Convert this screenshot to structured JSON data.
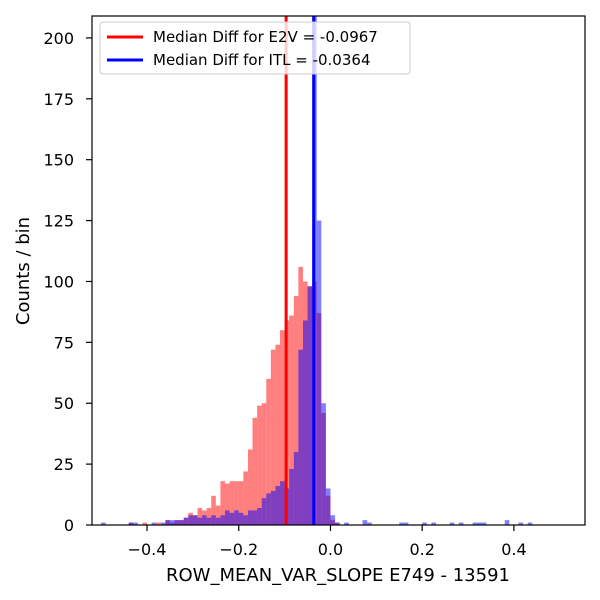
{
  "chart_data": {
    "type": "histogram",
    "title": "",
    "xlabel": "ROW_MEAN_VAR_SLOPE E749 - 13591",
    "ylabel": "Counts / bin",
    "xlim": [
      -0.52,
      0.555
    ],
    "ylim": [
      0,
      209
    ],
    "xticks": [
      -0.4,
      -0.2,
      0.0,
      0.2,
      0.4
    ],
    "xtick_labels": [
      "−0.4",
      "−0.2",
      "0.0",
      "0.2",
      "0.4"
    ],
    "yticks": [
      0,
      25,
      50,
      75,
      100,
      125,
      150,
      175,
      200
    ],
    "ytick_labels": [
      "0",
      "25",
      "50",
      "75",
      "100",
      "125",
      "150",
      "175",
      "200"
    ],
    "grid": false,
    "legend_position": "top-left",
    "bin_edges": [
      -0.5,
      0.55
    ],
    "bin_count": 105,
    "series": [
      {
        "name": "E2V",
        "color": "#ff0000",
        "alpha": 0.5,
        "bins": [
          {
            "x": -0.435,
            "y": 1
          },
          {
            "x": -0.405,
            "y": 1
          },
          {
            "x": -0.375,
            "y": 1
          },
          {
            "x": -0.355,
            "y": 2
          },
          {
            "x": -0.345,
            "y": 1
          },
          {
            "x": -0.335,
            "y": 2
          },
          {
            "x": -0.325,
            "y": 2
          },
          {
            "x": -0.315,
            "y": 3
          },
          {
            "x": -0.305,
            "y": 5
          },
          {
            "x": -0.295,
            "y": 4
          },
          {
            "x": -0.285,
            "y": 7
          },
          {
            "x": -0.275,
            "y": 6
          },
          {
            "x": -0.265,
            "y": 7
          },
          {
            "x": -0.255,
            "y": 12
          },
          {
            "x": -0.245,
            "y": 8
          },
          {
            "x": -0.235,
            "y": 18
          },
          {
            "x": -0.225,
            "y": 17
          },
          {
            "x": -0.215,
            "y": 18
          },
          {
            "x": -0.205,
            "y": 18
          },
          {
            "x": -0.195,
            "y": 18
          },
          {
            "x": -0.185,
            "y": 22
          },
          {
            "x": -0.175,
            "y": 31
          },
          {
            "x": -0.165,
            "y": 44
          },
          {
            "x": -0.155,
            "y": 49
          },
          {
            "x": -0.145,
            "y": 50
          },
          {
            "x": -0.135,
            "y": 60
          },
          {
            "x": -0.125,
            "y": 72
          },
          {
            "x": -0.115,
            "y": 74
          },
          {
            "x": -0.105,
            "y": 80
          },
          {
            "x": -0.095,
            "y": 84
          },
          {
            "x": -0.085,
            "y": 86
          },
          {
            "x": -0.075,
            "y": 94
          },
          {
            "x": -0.065,
            "y": 106
          },
          {
            "x": -0.055,
            "y": 100
          },
          {
            "x": -0.045,
            "y": 98
          },
          {
            "x": -0.035,
            "y": 100
          },
          {
            "x": -0.025,
            "y": 87
          },
          {
            "x": -0.015,
            "y": 46
          },
          {
            "x": -0.005,
            "y": 12
          },
          {
            "x": 0.005,
            "y": 2
          },
          {
            "x": 0.015,
            "y": 1
          }
        ]
      },
      {
        "name": "ITL",
        "color": "#0000ff",
        "alpha": 0.5,
        "bins": [
          {
            "x": -0.495,
            "y": 1
          },
          {
            "x": -0.435,
            "y": 1
          },
          {
            "x": -0.425,
            "y": 1
          },
          {
            "x": -0.385,
            "y": 1
          },
          {
            "x": -0.365,
            "y": 1
          },
          {
            "x": -0.355,
            "y": 2
          },
          {
            "x": -0.345,
            "y": 2
          },
          {
            "x": -0.335,
            "y": 2
          },
          {
            "x": -0.325,
            "y": 2
          },
          {
            "x": -0.315,
            "y": 3
          },
          {
            "x": -0.305,
            "y": 4
          },
          {
            "x": -0.295,
            "y": 4
          },
          {
            "x": -0.285,
            "y": 3
          },
          {
            "x": -0.275,
            "y": 4
          },
          {
            "x": -0.265,
            "y": 3
          },
          {
            "x": -0.255,
            "y": 4
          },
          {
            "x": -0.245,
            "y": 3
          },
          {
            "x": -0.235,
            "y": 4
          },
          {
            "x": -0.225,
            "y": 6
          },
          {
            "x": -0.215,
            "y": 5
          },
          {
            "x": -0.205,
            "y": 6
          },
          {
            "x": -0.195,
            "y": 5
          },
          {
            "x": -0.185,
            "y": 4
          },
          {
            "x": -0.175,
            "y": 6
          },
          {
            "x": -0.165,
            "y": 6
          },
          {
            "x": -0.155,
            "y": 7
          },
          {
            "x": -0.145,
            "y": 11
          },
          {
            "x": -0.135,
            "y": 13
          },
          {
            "x": -0.125,
            "y": 14
          },
          {
            "x": -0.115,
            "y": 16
          },
          {
            "x": -0.105,
            "y": 18
          },
          {
            "x": -0.095,
            "y": 15
          },
          {
            "x": -0.085,
            "y": 23
          },
          {
            "x": -0.075,
            "y": 30
          },
          {
            "x": -0.065,
            "y": 72
          },
          {
            "x": -0.055,
            "y": 84
          },
          {
            "x": -0.045,
            "y": 98
          },
          {
            "x": -0.035,
            "y": 209
          },
          {
            "x": -0.025,
            "y": 125
          },
          {
            "x": -0.015,
            "y": 50
          },
          {
            "x": -0.005,
            "y": 15
          },
          {
            "x": 0.005,
            "y": 4
          },
          {
            "x": 0.015,
            "y": 1
          },
          {
            "x": 0.035,
            "y": 1
          },
          {
            "x": 0.075,
            "y": 2
          },
          {
            "x": 0.085,
            "y": 1
          },
          {
            "x": 0.155,
            "y": 1
          },
          {
            "x": 0.165,
            "y": 1
          },
          {
            "x": 0.205,
            "y": 1
          },
          {
            "x": 0.225,
            "y": 1
          },
          {
            "x": 0.265,
            "y": 1
          },
          {
            "x": 0.285,
            "y": 1
          },
          {
            "x": 0.315,
            "y": 1
          },
          {
            "x": 0.325,
            "y": 1
          },
          {
            "x": 0.335,
            "y": 1
          },
          {
            "x": 0.385,
            "y": 2
          },
          {
            "x": 0.415,
            "y": 1
          },
          {
            "x": 0.435,
            "y": 1
          }
        ]
      }
    ],
    "median_lines": [
      {
        "series": "E2V",
        "label": "Median Diff for E2V = -0.0967",
        "x": -0.0967,
        "color": "#ff0000"
      },
      {
        "series": "ITL",
        "label": "Median Diff for ITL = -0.0364",
        "x": -0.0364,
        "color": "#0000ff"
      }
    ]
  }
}
